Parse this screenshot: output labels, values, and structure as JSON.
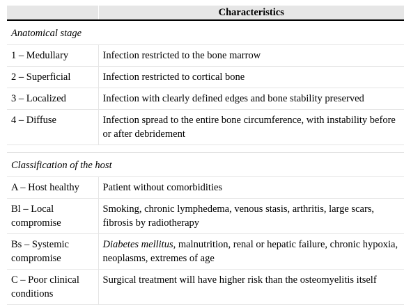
{
  "header": {
    "characteristics": "Characteristics"
  },
  "sections": [
    {
      "title": "Anatomical stage",
      "rows": [
        {
          "label": "1 – Medullary",
          "desc": "Infection restricted to the bone marrow"
        },
        {
          "label": "2 – Superficial",
          "desc": "Infection restricted to cortical bone"
        },
        {
          "label": "3 – Localized",
          "desc": "Infection with clearly defined edges and bone stability preserved"
        },
        {
          "label": "4 – Diffuse",
          "desc": "Infection spread to the entire bone circumference, with instability before or after debridement"
        }
      ]
    },
    {
      "title": "Classification of the host",
      "rows": [
        {
          "label": "A – Host healthy",
          "desc": "Patient without comorbidities"
        },
        {
          "label": "Bl – Local compromise",
          "desc": "Smoking, chronic lymphedema, venous stasis, arthritis, large scars, fibrosis by radiotherapy"
        },
        {
          "label": "Bs – Systemic compromise",
          "desc_italic": "Diabetes mellitus",
          "desc": ", malnutrition, renal or hepatic failure, chronic hypoxia, neoplasms, extremes of age"
        },
        {
          "label": "C – Poor clinical conditions",
          "desc": "Surgical treatment will have higher risk than the osteomyelitis itself"
        }
      ]
    }
  ]
}
